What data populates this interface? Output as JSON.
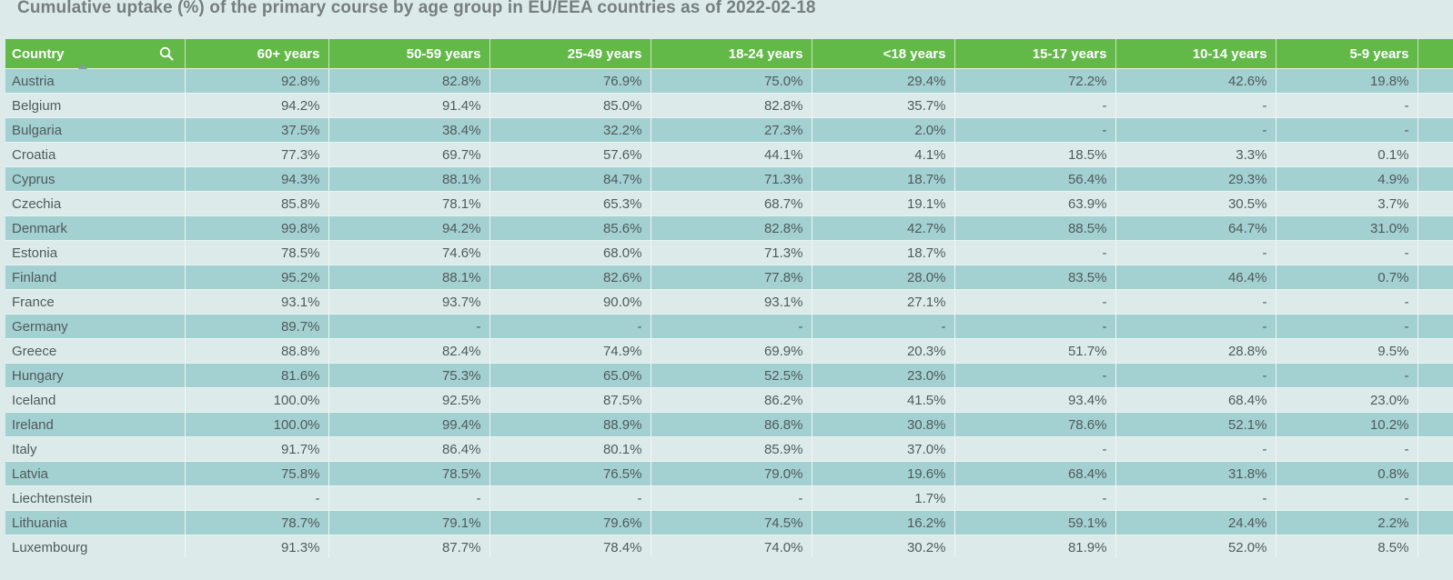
{
  "title": "Cumulative uptake (%) of the primary course by age group in EU/EEA countries as of 2022-02-18",
  "columns": [
    "Country",
    "60+ years",
    "50-59 years",
    "25-49 years",
    "18-24 years",
    "<18 years",
    "15-17 years",
    "10-14 years",
    "5-9 years",
    ""
  ],
  "rows": [
    [
      "Austria",
      "92.8%",
      "82.8%",
      "76.9%",
      "75.0%",
      "29.4%",
      "72.2%",
      "42.6%",
      "19.8%",
      ""
    ],
    [
      "Belgium",
      "94.2%",
      "91.4%",
      "85.0%",
      "82.8%",
      "35.7%",
      "-",
      "-",
      "-",
      ""
    ],
    [
      "Bulgaria",
      "37.5%",
      "38.4%",
      "32.2%",
      "27.3%",
      "2.0%",
      "-",
      "-",
      "-",
      ""
    ],
    [
      "Croatia",
      "77.3%",
      "69.7%",
      "57.6%",
      "44.1%",
      "4.1%",
      "18.5%",
      "3.3%",
      "0.1%",
      ""
    ],
    [
      "Cyprus",
      "94.3%",
      "88.1%",
      "84.7%",
      "71.3%",
      "18.7%",
      "56.4%",
      "29.3%",
      "4.9%",
      ""
    ],
    [
      "Czechia",
      "85.8%",
      "78.1%",
      "65.3%",
      "68.7%",
      "19.1%",
      "63.9%",
      "30.5%",
      "3.7%",
      ""
    ],
    [
      "Denmark",
      "99.8%",
      "94.2%",
      "85.6%",
      "82.8%",
      "42.7%",
      "88.5%",
      "64.7%",
      "31.0%",
      ""
    ],
    [
      "Estonia",
      "78.5%",
      "74.6%",
      "68.0%",
      "71.3%",
      "18.7%",
      "-",
      "-",
      "-",
      ""
    ],
    [
      "Finland",
      "95.2%",
      "88.1%",
      "82.6%",
      "77.8%",
      "28.0%",
      "83.5%",
      "46.4%",
      "0.7%",
      ""
    ],
    [
      "France",
      "93.1%",
      "93.7%",
      "90.0%",
      "93.1%",
      "27.1%",
      "-",
      "-",
      "-",
      ""
    ],
    [
      "Germany",
      "89.7%",
      "-",
      "-",
      "-",
      "-",
      "-",
      "-",
      "-",
      ""
    ],
    [
      "Greece",
      "88.8%",
      "82.4%",
      "74.9%",
      "69.9%",
      "20.3%",
      "51.7%",
      "28.8%",
      "9.5%",
      ""
    ],
    [
      "Hungary",
      "81.6%",
      "75.3%",
      "65.0%",
      "52.5%",
      "23.0%",
      "-",
      "-",
      "-",
      ""
    ],
    [
      "Iceland",
      "100.0%",
      "92.5%",
      "87.5%",
      "86.2%",
      "41.5%",
      "93.4%",
      "68.4%",
      "23.0%",
      ""
    ],
    [
      "Ireland",
      "100.0%",
      "99.4%",
      "88.9%",
      "86.8%",
      "30.8%",
      "78.6%",
      "52.1%",
      "10.2%",
      ""
    ],
    [
      "Italy",
      "91.7%",
      "86.4%",
      "80.1%",
      "85.9%",
      "37.0%",
      "-",
      "-",
      "-",
      ""
    ],
    [
      "Latvia",
      "75.8%",
      "78.5%",
      "76.5%",
      "79.0%",
      "19.6%",
      "68.4%",
      "31.8%",
      "0.8%",
      ""
    ],
    [
      "Liechtenstein",
      "-",
      "-",
      "-",
      "-",
      "1.7%",
      "-",
      "-",
      "-",
      ""
    ],
    [
      "Lithuania",
      "78.7%",
      "79.1%",
      "79.6%",
      "74.5%",
      "16.2%",
      "59.1%",
      "24.4%",
      "2.2%",
      ""
    ],
    [
      "Luxembourg",
      "91.3%",
      "87.7%",
      "78.4%",
      "74.0%",
      "30.2%",
      "81.9%",
      "52.0%",
      "8.5%",
      ""
    ]
  ],
  "icons": {
    "search": "search-icon",
    "sort": "sort-ascending-icon"
  },
  "colors": {
    "header_bg": "#62b947",
    "row_odd": "#a3d0d1",
    "row_even": "#dcebea",
    "title": "#767e7f"
  }
}
